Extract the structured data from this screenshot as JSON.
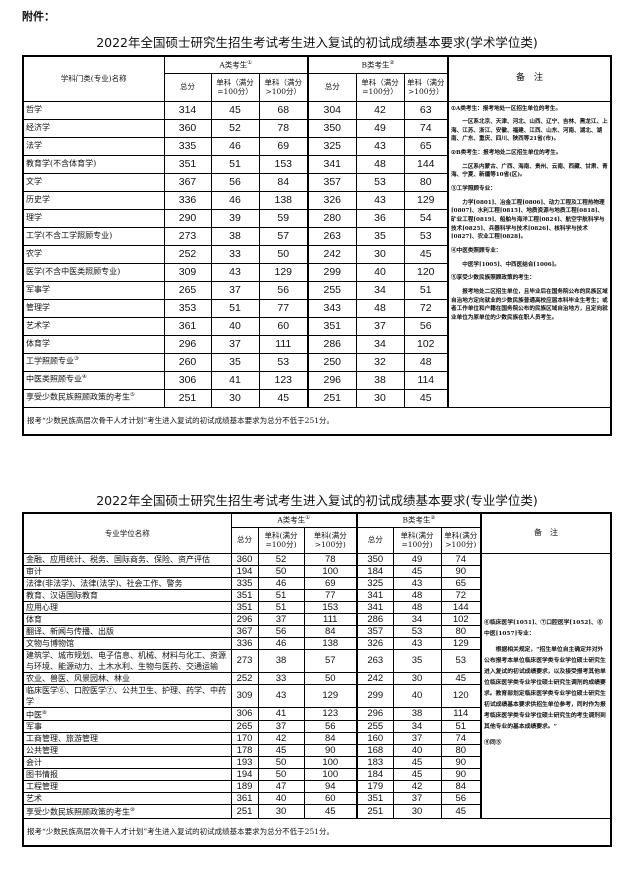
{
  "attachment_label": "附件：",
  "table1": {
    "title": "2022年全国硕士研究生招生考试考生进入复试的初试成绩基本要求(学术学位类)",
    "name_header": "学科门类(专业)名称",
    "group_a": "A类考生",
    "group_a_sup": "①",
    "group_b": "B类考生",
    "group_b_sup": "②",
    "col_total": "总分",
    "col_single_100": "单科（满分=100分）",
    "col_single_gt100": "单科（满分>100分）",
    "remarks_header": "备　注",
    "rows": [
      {
        "name": "哲学",
        "sup": "",
        "a": [
          314,
          45,
          68
        ],
        "b": [
          304,
          42,
          63
        ]
      },
      {
        "name": "经济学",
        "sup": "",
        "a": [
          360,
          52,
          78
        ],
        "b": [
          350,
          49,
          74
        ]
      },
      {
        "name": "法学",
        "sup": "",
        "a": [
          335,
          46,
          69
        ],
        "b": [
          325,
          43,
          65
        ]
      },
      {
        "name": "教育学(不含体育学)",
        "sup": "",
        "a": [
          351,
          51,
          153
        ],
        "b": [
          341,
          48,
          144
        ]
      },
      {
        "name": "文学",
        "sup": "",
        "a": [
          367,
          56,
          84
        ],
        "b": [
          357,
          53,
          80
        ]
      },
      {
        "name": "历史学",
        "sup": "",
        "a": [
          336,
          46,
          138
        ],
        "b": [
          326,
          43,
          129
        ]
      },
      {
        "name": "理学",
        "sup": "",
        "a": [
          290,
          39,
          59
        ],
        "b": [
          280,
          36,
          54
        ]
      },
      {
        "name": "工学(不含工学照顾专业)",
        "sup": "",
        "a": [
          273,
          38,
          57
        ],
        "b": [
          263,
          35,
          53
        ]
      },
      {
        "name": "农学",
        "sup": "",
        "a": [
          252,
          33,
          50
        ],
        "b": [
          242,
          30,
          45
        ]
      },
      {
        "name": "医学(不含中医类照顾专业)",
        "sup": "",
        "a": [
          309,
          43,
          129
        ],
        "b": [
          299,
          40,
          120
        ]
      },
      {
        "name": "军事学",
        "sup": "",
        "a": [
          265,
          37,
          56
        ],
        "b": [
          255,
          34,
          51
        ]
      },
      {
        "name": "管理学",
        "sup": "",
        "a": [
          353,
          51,
          77
        ],
        "b": [
          343,
          48,
          72
        ]
      },
      {
        "name": "艺术学",
        "sup": "",
        "a": [
          361,
          40,
          60
        ],
        "b": [
          351,
          37,
          56
        ]
      },
      {
        "name": "体育学",
        "sup": "",
        "a": [
          296,
          37,
          111
        ],
        "b": [
          286,
          34,
          102
        ]
      },
      {
        "name": "工学照顾专业",
        "sup": "③",
        "a": [
          260,
          35,
          53
        ],
        "b": [
          250,
          32,
          48
        ]
      },
      {
        "name": "中医类照顾专业",
        "sup": "④",
        "a": [
          306,
          41,
          123
        ],
        "b": [
          296,
          38,
          114
        ]
      },
      {
        "name": "享受少数民族照顾政策的考生",
        "sup": "⑤",
        "a": [
          251,
          30,
          45
        ],
        "b": [
          251,
          30,
          45
        ]
      }
    ],
    "remarks": [
      {
        "text": "①A类考生：报考地处一区招生单位的考生。",
        "indent": false
      },
      {
        "text": "一区系北京、天津、河北、山西、辽宁、吉林、黑龙江、上海、江苏、浙江、安徽、福建、江西、山东、河南、湖北、湖南、广东、重庆、四川、陕西等21省(市)。",
        "indent": true
      },
      {
        "text": "②B类考生：报考地处二区招生单位的考生。",
        "indent": false
      },
      {
        "text": "二区系内蒙古、广西、海南、贵州、云南、西藏、甘肃、青海、宁夏、新疆等10省(区)。",
        "indent": true
      },
      {
        "text": "③工学照顾专业：",
        "indent": false
      },
      {
        "text": "力学[0801]、冶金工程[0806]、动力工程及工程热物理[0807]、水利工程[0815]、地质资源与地质工程[0818]、矿业工程[0819]、船舶与海洋工程[0824]、航空宇航科学与技术[0825]、兵器科学与技术[0826]、核科学与技术[0827]、农业工程[0828]。",
        "indent": true
      },
      {
        "text": "④中医类照顾专业：",
        "indent": false
      },
      {
        "text": "中医学[1005]、中西医结合[1006]。",
        "indent": true
      },
      {
        "text": "⑤享受少数民族照顾政策的考生：",
        "indent": false
      },
      {
        "text": "报考地处二区招生单位，且毕业后在国务院公布的民族区域自治地方定向就业的少数民族普通高校应届本科毕业生考生；或者工作单位和户籍在国务院公布的民族区域自治地方，且定向就业单位为原单位的少数民族在职人员考生。",
        "indent": true
      }
    ],
    "footnote": "报考“少数民族高层次骨干人才计划”考生进入复试的初试成绩基本要求为总分不低于251分。"
  },
  "table2": {
    "title": "2022年全国硕士研究生招生考试考生进入复试的初试成绩基本要求(专业学位类)",
    "name_header": "专业学位名称",
    "group_a": "A类考生",
    "group_a_sup": "①",
    "group_b": "B类考生",
    "group_b_sup": "②",
    "col_total": "总分",
    "col_single_100": "单科(满分=100分)",
    "col_single_gt100": "单科(满分>100分)",
    "remarks_header": "备　注",
    "rows": [
      {
        "name": "金融、应用统计、税务、国际商务、保险、资产评估",
        "sup": "",
        "a": [
          360,
          52,
          78
        ],
        "b": [
          350,
          49,
          74
        ]
      },
      {
        "name": "审计",
        "sup": "",
        "a": [
          194,
          50,
          100
        ],
        "b": [
          184,
          45,
          90
        ]
      },
      {
        "name": "法律(非法学)、法律(法学)、社会工作、警务",
        "sup": "",
        "a": [
          335,
          46,
          69
        ],
        "b": [
          325,
          43,
          65
        ]
      },
      {
        "name": "教育、汉语国际教育",
        "sup": "",
        "a": [
          351,
          51,
          77
        ],
        "b": [
          341,
          48,
          72
        ]
      },
      {
        "name": "应用心理",
        "sup": "",
        "a": [
          351,
          51,
          153
        ],
        "b": [
          341,
          48,
          144
        ]
      },
      {
        "name": "体育",
        "sup": "",
        "a": [
          296,
          37,
          111
        ],
        "b": [
          286,
          34,
          102
        ]
      },
      {
        "name": "翻译、新闻与传播、出版",
        "sup": "",
        "a": [
          367,
          56,
          84
        ],
        "b": [
          357,
          53,
          80
        ]
      },
      {
        "name": "文物与博物馆",
        "sup": "",
        "a": [
          336,
          46,
          138
        ],
        "b": [
          326,
          43,
          129
        ]
      },
      {
        "name": "建筑学、城市规划、电子信息、机械、材料与化工、资源与环境、能源动力、土木水利、生物与医药、交通运输",
        "sup": "",
        "a": [
          273,
          38,
          57
        ],
        "b": [
          263,
          35,
          53
        ]
      },
      {
        "name": "农业、兽医、风景园林、林业",
        "sup": "",
        "a": [
          252,
          33,
          50
        ],
        "b": [
          242,
          30,
          45
        ]
      },
      {
        "name": "临床医学⑥、口腔医学⑦、公共卫生、护理、药学、中药学",
        "sup": "",
        "a": [
          309,
          43,
          129
        ],
        "b": [
          299,
          40,
          120
        ]
      },
      {
        "name": "中医",
        "sup": "⑧",
        "a": [
          306,
          41,
          123
        ],
        "b": [
          296,
          38,
          114
        ]
      },
      {
        "name": "军事",
        "sup": "",
        "a": [
          265,
          37,
          56
        ],
        "b": [
          255,
          34,
          51
        ]
      },
      {
        "name": "工商管理、旅游管理",
        "sup": "",
        "a": [
          170,
          42,
          84
        ],
        "b": [
          160,
          37,
          74
        ]
      },
      {
        "name": "公共管理",
        "sup": "",
        "a": [
          178,
          45,
          90
        ],
        "b": [
          168,
          40,
          80
        ]
      },
      {
        "name": "会计",
        "sup": "",
        "a": [
          193,
          50,
          100
        ],
        "b": [
          183,
          45,
          90
        ]
      },
      {
        "name": "图书情报",
        "sup": "",
        "a": [
          194,
          50,
          100
        ],
        "b": [
          184,
          45,
          90
        ]
      },
      {
        "name": "工程管理",
        "sup": "",
        "a": [
          189,
          47,
          94
        ],
        "b": [
          179,
          42,
          84
        ]
      },
      {
        "name": "艺术",
        "sup": "",
        "a": [
          361,
          40,
          60
        ],
        "b": [
          351,
          37,
          56
        ]
      },
      {
        "name": "享受少数民族照顾政策的考生",
        "sup": "⑨",
        "a": [
          251,
          30,
          45
        ],
        "b": [
          251,
          30,
          45
        ]
      }
    ],
    "remarks": [
      {
        "text": "⑥临床医学[1051]、⑦口腔医学[1052]、⑧中医[1057]专业：",
        "indent": false
      },
      {
        "text": "根据相关规定，“招生单位自主确定并对外公布报考本单位临床医学类专业学位硕士研究生进入复试的初试成绩要求，以及接受报考其他单位临床医学类专业学位硕士研究生调剂的成绩要求。教育部划定临床医学类专业学位硕士研究生初试成绩基本要求供招生单位参考，同时作为报考临床医学类专业学位硕士研究生的考生调剂到其他专业的基本成绩要求。”",
        "indent": true
      },
      {
        "text": "⑨同⑤",
        "indent": false
      }
    ],
    "footnote": "报考“少数民族高层次骨干人才计划”考生进入复试的初试成绩基本要求为总分不低于251分。"
  }
}
